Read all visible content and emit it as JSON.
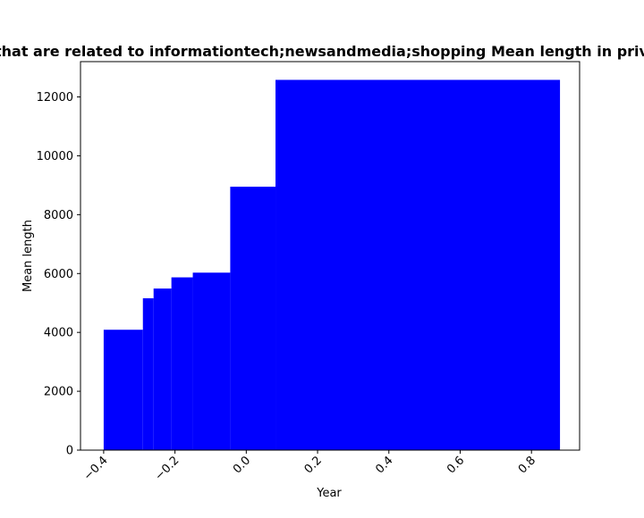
{
  "chart_data": {
    "type": "bar",
    "title": "Websites that are related to informationtech;newsandmedia;shopping Mean length in privacy policies",
    "xlabel": "Year",
    "ylabel": "Mean length",
    "xlim": [
      -0.465,
      0.935
    ],
    "ylim": [
      0,
      13200
    ],
    "xticks": [
      -0.4,
      -0.2,
      0.0,
      0.2,
      0.4,
      0.6,
      0.8
    ],
    "xtick_labels": [
      "−0.4",
      "−0.2",
      "0.0",
      "0.2",
      "0.4",
      "0.6",
      "0.8"
    ],
    "yticks": [
      0,
      2000,
      4000,
      6000,
      8000,
      10000,
      12000
    ],
    "ytick_labels": [
      "0",
      "2000",
      "4000",
      "6000",
      "8000",
      "10000",
      "12000"
    ],
    "grid": false,
    "color": "#0000ff",
    "bars": [
      {
        "x0": -0.4,
        "x1": -0.29,
        "value": 4090
      },
      {
        "x0": -0.29,
        "x1": -0.26,
        "value": 5160
      },
      {
        "x0": -0.26,
        "x1": -0.21,
        "value": 5490
      },
      {
        "x0": -0.21,
        "x1": -0.15,
        "value": 5870
      },
      {
        "x0": -0.15,
        "x1": -0.045,
        "value": 6030
      },
      {
        "x0": -0.045,
        "x1": 0.082,
        "value": 8950
      },
      {
        "x0": 0.082,
        "x1": 0.88,
        "value": 12580
      }
    ]
  }
}
